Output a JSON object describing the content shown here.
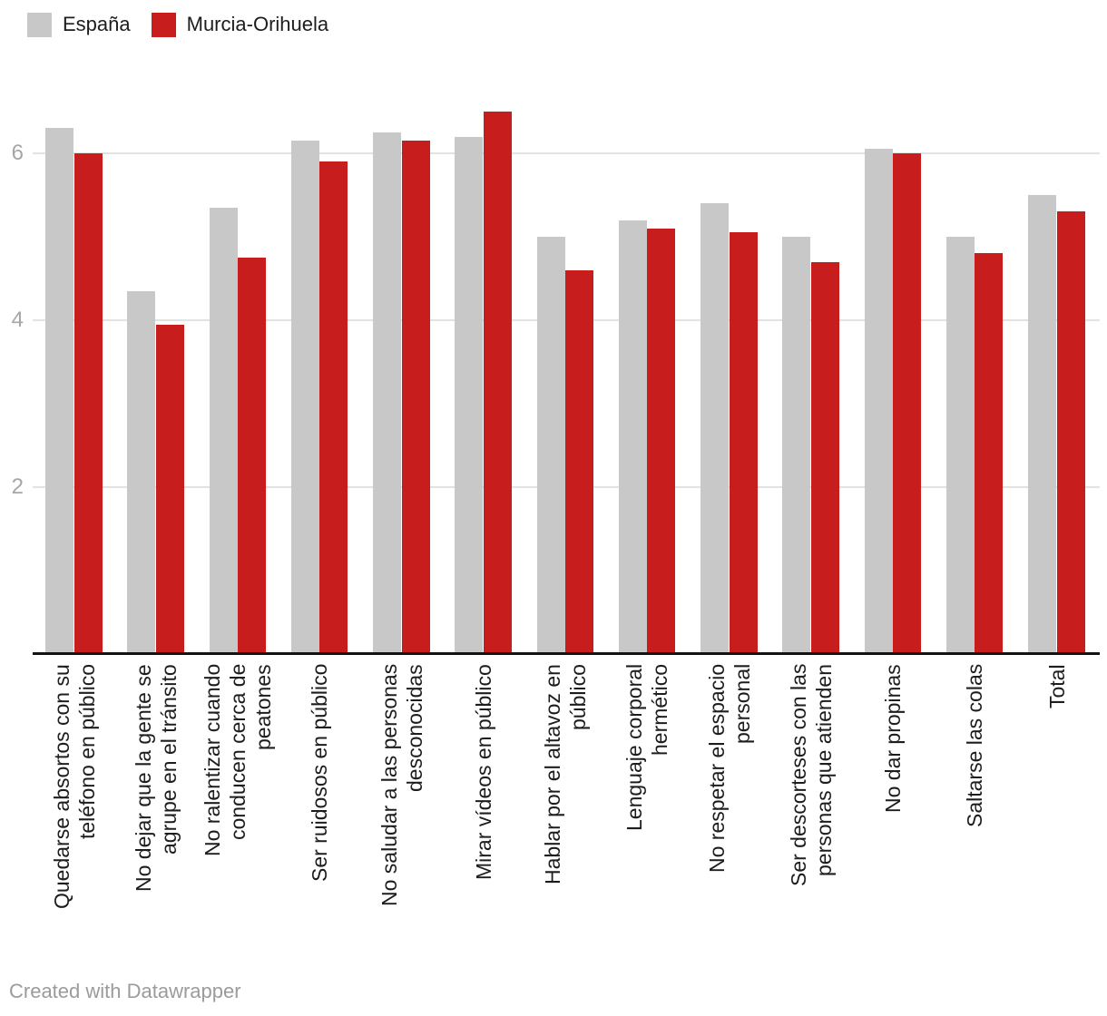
{
  "legend": [
    {
      "label": "España",
      "color": "#c8c8c8"
    },
    {
      "label": "Murcia-Orihuela",
      "color": "#c71e1d"
    }
  ],
  "footer": {
    "credit": "Created with Datawrapper"
  },
  "chart_data": {
    "type": "bar",
    "grouped": true,
    "title": "",
    "xlabel": "",
    "ylabel": "",
    "yticks": [
      2,
      4,
      6
    ],
    "ylim": [
      0,
      6.75
    ],
    "grid": "horizontal",
    "legend_position": "top-left",
    "categories": [
      "Quedarse absortos con su\nteléfono en público",
      "No dejar que la gente se\nagrupe en el tránsito",
      "No ralentizar cuando\nconducen cerca de\npeatones",
      "Ser ruidosos en público",
      "No saludar a las personas\ndesconocidas",
      "Mirar vídeos en público",
      "Hablar por el altavoz en\npúblico",
      "Lenguaje corporal\nhermético",
      "No respetar el espacio\npersonal",
      "Ser descorteses con las\npersonas que atienden",
      "No dar propinas",
      "Saltarse las colas",
      "Total"
    ],
    "series": [
      {
        "name": "España",
        "color": "#c8c8c8",
        "values": [
          6.3,
          4.35,
          5.35,
          6.15,
          6.25,
          6.2,
          5.0,
          5.2,
          5.4,
          5.0,
          6.05,
          5.0,
          5.5
        ]
      },
      {
        "name": "Murcia-Orihuela",
        "color": "#c71e1d",
        "values": [
          6.0,
          3.95,
          4.75,
          5.9,
          6.15,
          6.5,
          4.6,
          5.1,
          5.05,
          4.7,
          6.0,
          4.8,
          5.3
        ]
      }
    ]
  }
}
